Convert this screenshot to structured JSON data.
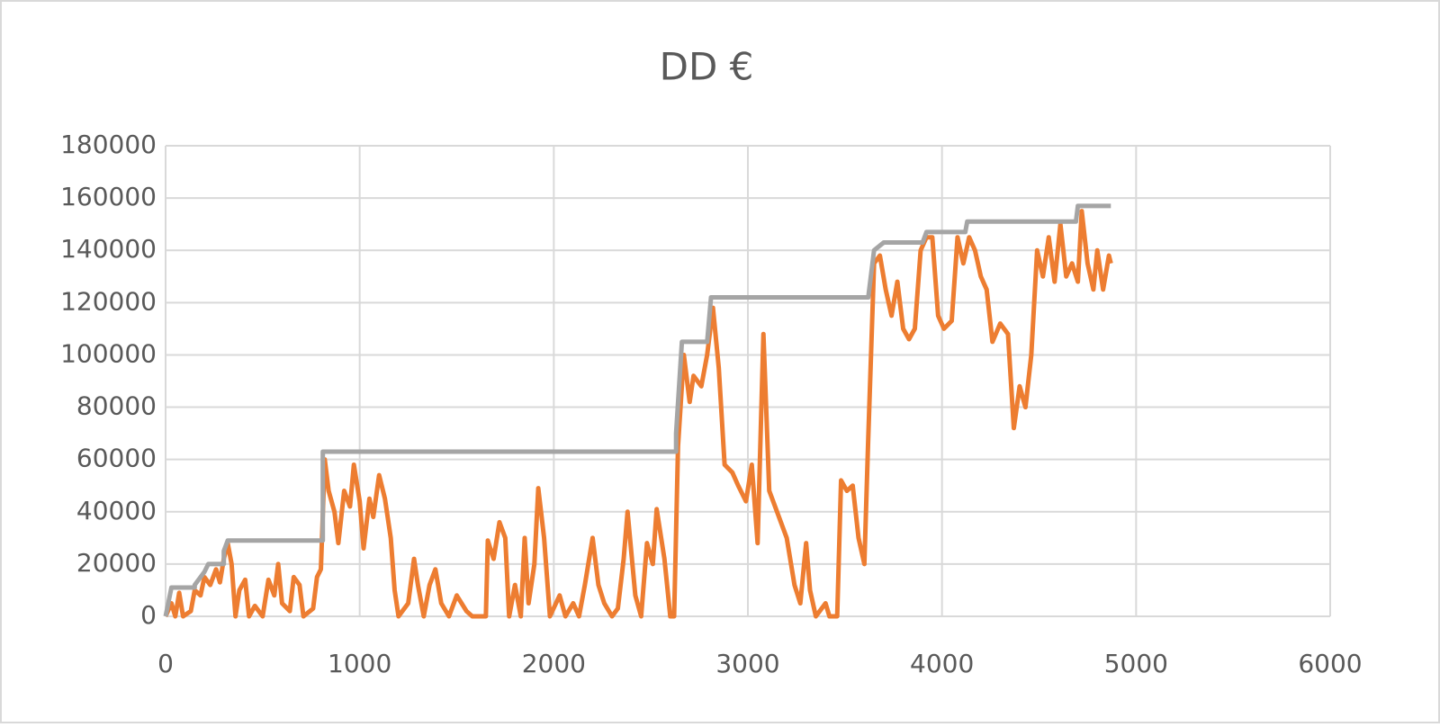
{
  "chart_data": {
    "type": "line",
    "title": "DD €",
    "xlim": [
      0,
      6000
    ],
    "xticks": [
      0,
      1000,
      2000,
      3000,
      4000,
      5000,
      6000
    ],
    "ylim": [
      0,
      180000
    ],
    "yticks": [
      0,
      20000,
      40000,
      60000,
      80000,
      100000,
      120000,
      140000,
      160000,
      180000
    ],
    "grid": true,
    "series": [
      {
        "color": "#ed7d31",
        "x": [
          0,
          30,
          50,
          70,
          90,
          130,
          150,
          180,
          200,
          230,
          260,
          280,
          300,
          320,
          340,
          360,
          380,
          410,
          430,
          460,
          500,
          530,
          560,
          580,
          600,
          640,
          660,
          690,
          710,
          760,
          780,
          800,
          820,
          840,
          870,
          890,
          920,
          950,
          970,
          1000,
          1020,
          1050,
          1070,
          1100,
          1130,
          1160,
          1180,
          1200,
          1250,
          1280,
          1300,
          1330,
          1360,
          1390,
          1420,
          1460,
          1500,
          1550,
          1580,
          1650,
          1660,
          1690,
          1720,
          1750,
          1770,
          1800,
          1830,
          1850,
          1870,
          1900,
          1920,
          1950,
          1980,
          2030,
          2060,
          2100,
          2130,
          2160,
          2200,
          2230,
          2260,
          2300,
          2330,
          2360,
          2380,
          2420,
          2450,
          2480,
          2510,
          2530,
          2570,
          2600,
          2620,
          2640,
          2670,
          2700,
          2720,
          2760,
          2790,
          2820,
          2850,
          2880,
          2920,
          2950,
          2990,
          3020,
          3050,
          3080,
          3110,
          3150,
          3200,
          3240,
          3270,
          3300,
          3320,
          3350,
          3400,
          3420,
          3460,
          3480,
          3510,
          3540,
          3570,
          3600,
          3620,
          3650,
          3680,
          3710,
          3740,
          3770,
          3800,
          3830,
          3860,
          3890,
          3920,
          3950,
          3980,
          4010,
          4050,
          4080,
          4110,
          4140,
          4170,
          4200,
          4230,
          4260,
          4300,
          4340,
          4370,
          4400,
          4430,
          4460,
          4490,
          4520,
          4550,
          4580,
          4610,
          4640,
          4670,
          4700,
          4720,
          4750,
          4780,
          4800,
          4830,
          4860,
          4870
        ],
        "values": [
          0,
          5000,
          0,
          9000,
          0,
          2000,
          10000,
          8000,
          15000,
          12000,
          18000,
          13000,
          22000,
          28000,
          20000,
          0,
          10000,
          14000,
          0,
          4000,
          0,
          14000,
          8000,
          20000,
          5000,
          2000,
          15000,
          12000,
          0,
          3000,
          15000,
          18000,
          60000,
          48000,
          40000,
          28000,
          48000,
          42000,
          58000,
          44000,
          26000,
          45000,
          38000,
          54000,
          45000,
          30000,
          10000,
          0,
          5000,
          22000,
          12000,
          0,
          12000,
          18000,
          5000,
          0,
          8000,
          2000,
          0,
          0,
          29000,
          22000,
          36000,
          30000,
          0,
          12000,
          0,
          30000,
          5000,
          20000,
          49000,
          30000,
          0,
          8000,
          0,
          5000,
          0,
          12000,
          30000,
          12000,
          5000,
          0,
          3000,
          22000,
          40000,
          8000,
          0,
          28000,
          20000,
          41000,
          22000,
          0,
          0,
          65000,
          100000,
          82000,
          92000,
          88000,
          100000,
          118000,
          95000,
          58000,
          55000,
          50000,
          44000,
          58000,
          28000,
          108000,
          48000,
          40000,
          30000,
          12000,
          5000,
          28000,
          10000,
          0,
          5000,
          0,
          0,
          52000,
          48000,
          50000,
          30000,
          20000,
          68000,
          135000,
          138000,
          125000,
          115000,
          128000,
          110000,
          106000,
          110000,
          140000,
          145000,
          145000,
          115000,
          110000,
          113000,
          145000,
          135000,
          145000,
          140000,
          130000,
          125000,
          105000,
          112000,
          108000,
          72000,
          88000,
          80000,
          100000,
          140000,
          130000,
          145000,
          128000,
          150000,
          130000,
          135000,
          128000,
          155000,
          135000,
          125000,
          140000,
          125000,
          138000,
          135000
        ]
      },
      {
        "color": "#a5a5a5",
        "x": [
          0,
          30,
          150,
          150,
          200,
          220,
          300,
          300,
          320,
          810,
          810,
          2630,
          2630,
          2660,
          2790,
          2810,
          3620,
          3650,
          3700,
          3900,
          3920,
          4120,
          4130,
          4690,
          4700,
          4870
        ],
        "values": [
          0,
          11000,
          11000,
          12000,
          17000,
          20000,
          20000,
          25000,
          29000,
          29000,
          63000,
          63000,
          70000,
          105000,
          105000,
          122000,
          122000,
          140000,
          143000,
          143000,
          147000,
          147000,
          151000,
          151000,
          157000,
          157000
        ]
      }
    ]
  }
}
